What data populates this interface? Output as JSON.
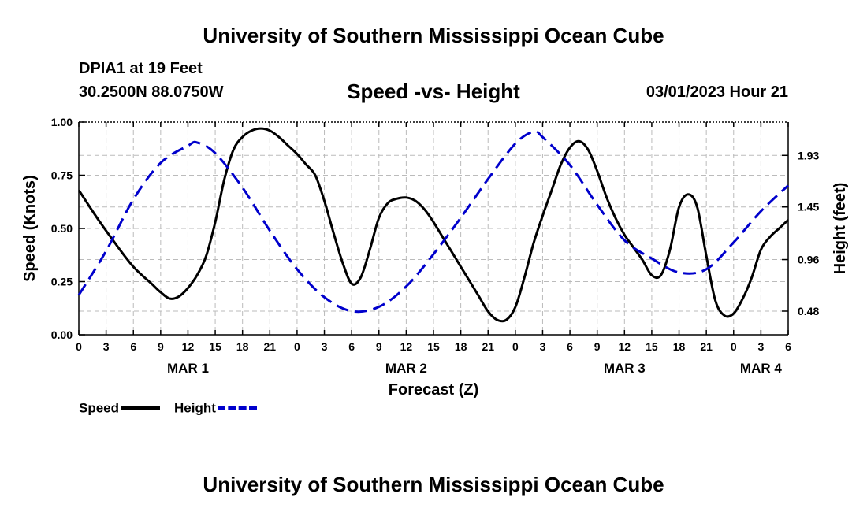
{
  "header": {
    "title": "University of Southern Mississippi Ocean Cube",
    "station": "DPIA1 at 19 Feet",
    "coordinates": "30.2500N  88.0750W",
    "subtitle": "Speed -vs- Height",
    "datetime": "03/01/2023 Hour 21"
  },
  "footer": {
    "title": "University of Southern Mississippi Ocean Cube"
  },
  "legend": {
    "speed_label": "Speed",
    "height_label": "Height"
  },
  "colors": {
    "speed": "#000000",
    "height": "#0000cc",
    "grid": "#bbbbbb"
  },
  "chart_data": {
    "type": "line",
    "title": "Speed -vs- Height",
    "xlabel": "Forecast (Z)",
    "ylabel": "Speed (Knots)",
    "y2label": "Height (feet)",
    "xlim": [
      0,
      78
    ],
    "ylim": [
      0,
      1.0
    ],
    "y2lim": [
      0.26,
      2.24
    ],
    "x_ticks": [
      0,
      3,
      6,
      9,
      12,
      15,
      18,
      21,
      24,
      27,
      30,
      33,
      36,
      39,
      42,
      45,
      48,
      51,
      54,
      57,
      60,
      63,
      66,
      69,
      72,
      75,
      78
    ],
    "x_tick_labels": [
      "0",
      "3",
      "6",
      "9",
      "12",
      "15",
      "18",
      "21",
      "0",
      "3",
      "6",
      "9",
      "12",
      "15",
      "18",
      "21",
      "0",
      "3",
      "6",
      "9",
      "12",
      "15",
      "18",
      "21",
      "0",
      "3",
      "6"
    ],
    "date_labels": [
      {
        "x": 12,
        "label": "MAR 1"
      },
      {
        "x": 36,
        "label": "MAR 2"
      },
      {
        "x": 60,
        "label": "MAR 3"
      },
      {
        "x": 75,
        "label": "MAR 4"
      }
    ],
    "y_ticks": [
      0.0,
      0.25,
      0.5,
      0.75,
      1.0
    ],
    "y_tick_labels": [
      "0.00",
      "0.25",
      "0.50",
      "0.75",
      "1.00"
    ],
    "y2_ticks": [
      0.48,
      0.96,
      1.45,
      1.93
    ],
    "y2_tick_labels": [
      "0.48",
      "0.96",
      "1.45",
      "1.93"
    ],
    "series": [
      {
        "name": "Speed",
        "axis": "left",
        "style": "solid",
        "x": [
          0,
          2,
          4,
          6,
          8,
          9,
          10,
          11,
          12,
          13,
          14,
          15,
          16,
          17,
          18,
          19,
          20,
          21,
          22,
          23,
          24,
          25,
          26,
          27,
          28,
          29,
          30,
          31,
          32,
          33,
          34,
          35,
          36,
          37,
          38,
          39,
          40,
          41,
          42,
          43,
          44,
          45,
          46,
          47,
          48,
          49,
          50,
          51,
          52,
          53,
          54,
          55,
          56,
          57,
          58,
          59,
          60,
          61,
          62,
          63,
          64,
          65,
          66,
          67,
          68,
          69,
          70,
          71,
          72,
          73,
          74,
          75,
          76,
          77,
          78
        ],
        "values": [
          0.68,
          0.55,
          0.43,
          0.32,
          0.24,
          0.2,
          0.17,
          0.18,
          0.22,
          0.28,
          0.37,
          0.53,
          0.73,
          0.87,
          0.93,
          0.96,
          0.97,
          0.96,
          0.93,
          0.89,
          0.85,
          0.8,
          0.75,
          0.63,
          0.48,
          0.34,
          0.24,
          0.27,
          0.4,
          0.55,
          0.62,
          0.64,
          0.645,
          0.63,
          0.59,
          0.53,
          0.46,
          0.39,
          0.32,
          0.25,
          0.18,
          0.11,
          0.07,
          0.07,
          0.13,
          0.27,
          0.43,
          0.56,
          0.68,
          0.8,
          0.88,
          0.91,
          0.87,
          0.77,
          0.65,
          0.55,
          0.47,
          0.41,
          0.35,
          0.28,
          0.28,
          0.4,
          0.6,
          0.66,
          0.6,
          0.37,
          0.16,
          0.09,
          0.1,
          0.17,
          0.27,
          0.4,
          0.46,
          0.5,
          0.54
        ]
      },
      {
        "name": "Height",
        "axis": "right",
        "style": "dashed",
        "x": [
          0,
          3,
          6,
          9,
          12,
          13,
          15,
          18,
          21,
          24,
          27,
          30,
          33,
          36,
          39,
          42,
          45,
          48,
          50,
          51,
          54,
          57,
          60,
          63,
          66,
          69,
          72,
          75,
          78
        ],
        "values": [
          0.63,
          1.04,
          1.52,
          1.86,
          2.02,
          2.05,
          1.95,
          1.63,
          1.23,
          0.87,
          0.61,
          0.48,
          0.52,
          0.71,
          1.01,
          1.35,
          1.71,
          2.04,
          2.15,
          2.1,
          1.84,
          1.47,
          1.14,
          0.97,
          0.84,
          0.87,
          1.12,
          1.41,
          1.65
        ]
      }
    ]
  }
}
